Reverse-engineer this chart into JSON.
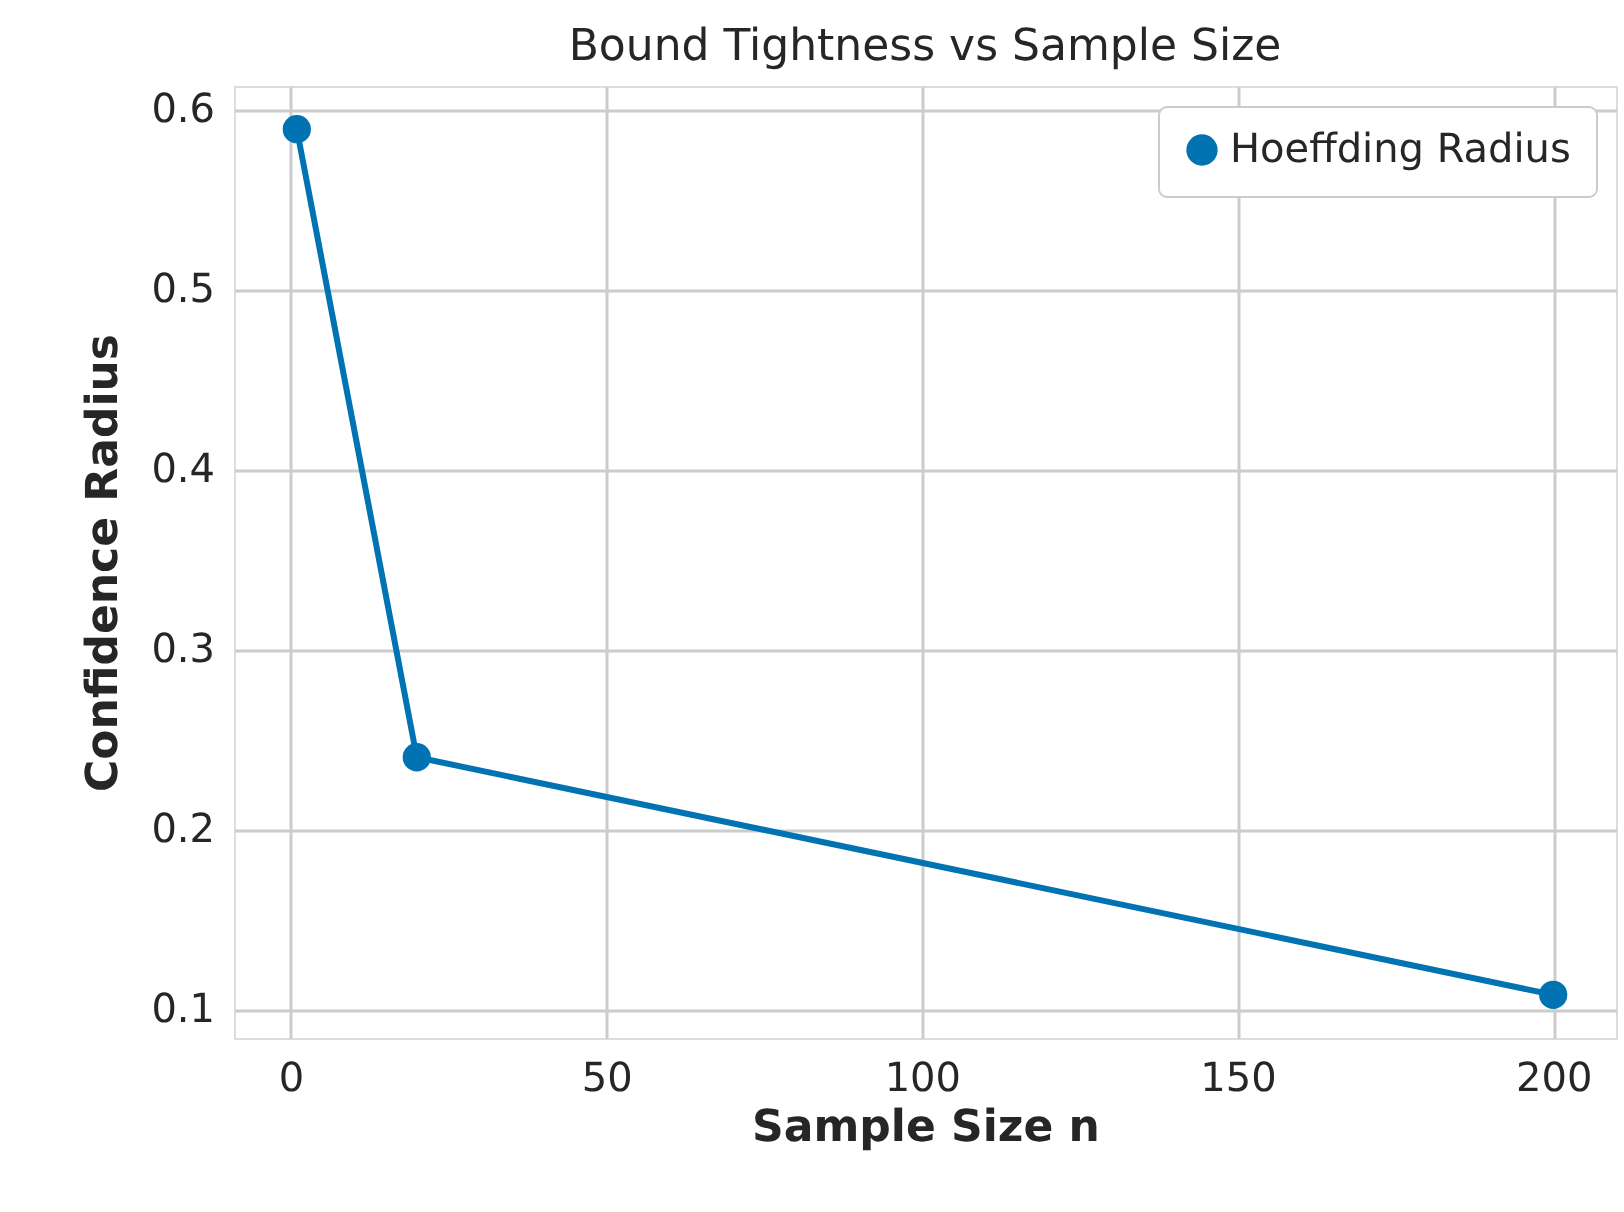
{
  "chart_data": {
    "type": "line",
    "title": "Bound Tightness vs Sample Size",
    "xlabel": "Sample Size n",
    "ylabel": "Confidence Radius",
    "x": [
      1,
      20,
      200
    ],
    "series": [
      {
        "name": "Hoeffding Radius",
        "color": "#0173b2",
        "values": [
          0.589,
          0.24,
          0.108
        ]
      }
    ],
    "xlim": [
      -8.95,
      209.95
    ],
    "xticks": [
      0,
      50,
      100,
      150,
      200
    ],
    "ylim": [
      0.084,
      0.613
    ],
    "yticks": [
      0.1,
      0.2,
      0.3,
      0.4,
      0.5,
      0.6
    ],
    "grid": true,
    "legend": "top right",
    "marker": "circle",
    "line_style": "solid"
  }
}
